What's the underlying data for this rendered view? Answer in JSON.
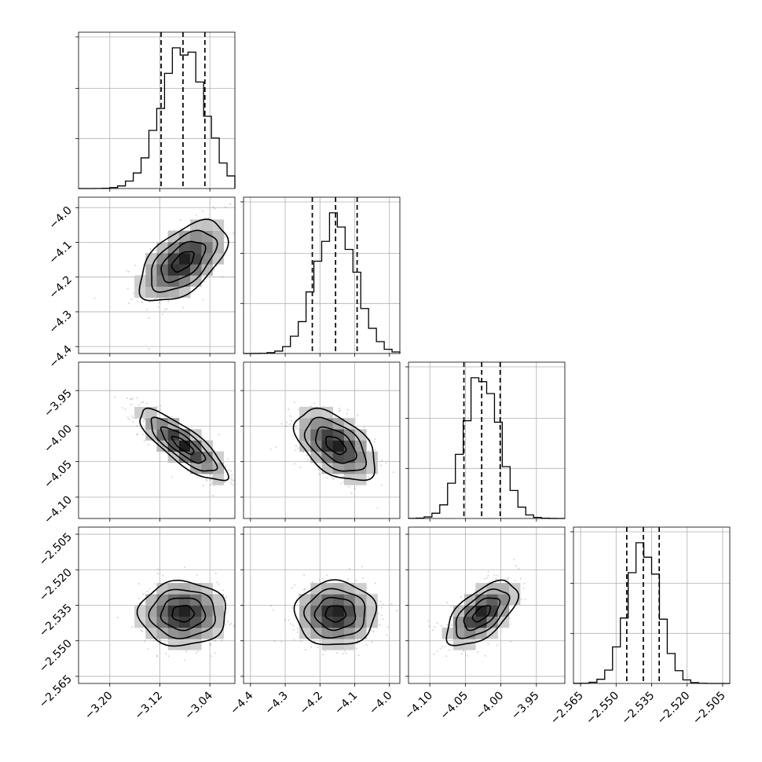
{
  "chart_data": {
    "type": "corner",
    "parameters": [
      {
        "ticks": [
          -3.2,
          -3.12,
          -3.04
        ],
        "tick_labels": [
          "−3.20",
          "−3.12",
          "−3.04"
        ],
        "range": [
          -3.25,
          -3.0
        ],
        "mean": -3.083,
        "sigma": 0.035,
        "quantiles": [
          -3.118,
          -3.083,
          -3.048
        ]
      },
      {
        "ticks": [
          -4.4,
          -4.3,
          -4.2,
          -4.1,
          -4.0
        ],
        "tick_labels": [
          "−4.4",
          "−4.3",
          "−4.2",
          "−4.1",
          "−4.0"
        ],
        "range": [
          -4.42,
          -3.97
        ],
        "mean": -4.155,
        "sigma": 0.058,
        "quantiles": [
          -4.222,
          -4.155,
          -4.093
        ]
      },
      {
        "ticks": [
          -4.1,
          -4.05,
          -4.0,
          -3.95
        ],
        "tick_labels": [
          "−4.10",
          "−4.05",
          "−4.00",
          "−3.95"
        ],
        "range": [
          -4.13,
          -3.91
        ],
        "mean": -4.027,
        "sigma": 0.025,
        "quantiles": [
          -4.052,
          -4.027,
          -4.001
        ]
      },
      {
        "ticks": [
          -2.565,
          -2.55,
          -2.535,
          -2.52,
          -2.505
        ],
        "tick_labels": [
          "−2.565",
          "−2.550",
          "−2.535",
          "−2.520",
          "−2.505"
        ],
        "range": [
          -2.568,
          -2.502
        ],
        "mean": -2.5385,
        "sigma": 0.0068,
        "quantiles": [
          -2.5455,
          -2.5385,
          -2.5318
        ]
      }
    ],
    "correlations": [
      [
        1,
        0.55,
        -0.82,
        0.0
      ],
      [
        0.55,
        1,
        -0.5,
        0.0
      ],
      [
        -0.82,
        -0.5,
        1,
        0.6
      ],
      [
        0.0,
        0.0,
        0.6,
        1
      ]
    ],
    "contour_levels_sigma": [
      0.5,
      1.0,
      1.5,
      2.0
    ],
    "grid": true
  }
}
